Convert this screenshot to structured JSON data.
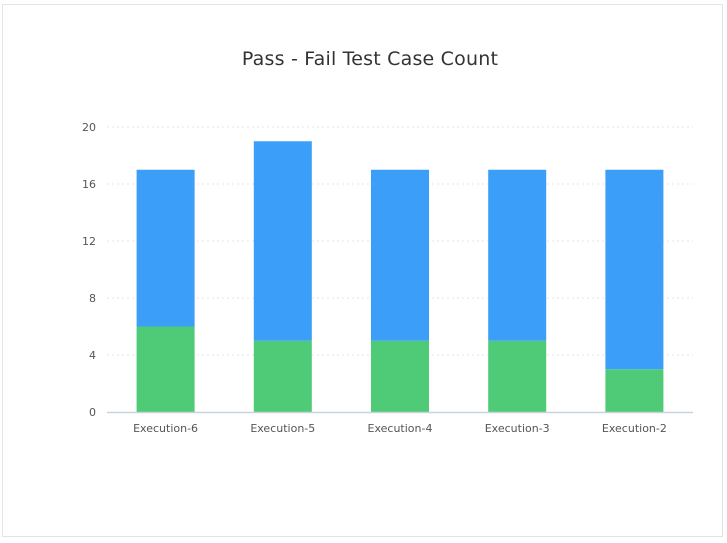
{
  "chart_data": {
    "type": "bar",
    "stacked": true,
    "title": "Pass - Fail Test Case Count",
    "categories": [
      "Execution-6",
      "Execution-5",
      "Execution-4",
      "Execution-3",
      "Execution-2"
    ],
    "series": [
      {
        "values": [
          6,
          5,
          5,
          5,
          3
        ],
        "color": "#4fca77"
      },
      {
        "values": [
          11,
          14,
          12,
          12,
          14
        ],
        "color": "#3b9ef8"
      }
    ],
    "yticks": [
      0,
      4,
      8,
      12,
      16,
      20
    ],
    "ylim": [
      0,
      20
    ],
    "grid": true,
    "legend": "none"
  },
  "colors": {
    "grid": "#e3e6ea",
    "axis": "#c9d3dc",
    "tick_text": "#555555"
  }
}
